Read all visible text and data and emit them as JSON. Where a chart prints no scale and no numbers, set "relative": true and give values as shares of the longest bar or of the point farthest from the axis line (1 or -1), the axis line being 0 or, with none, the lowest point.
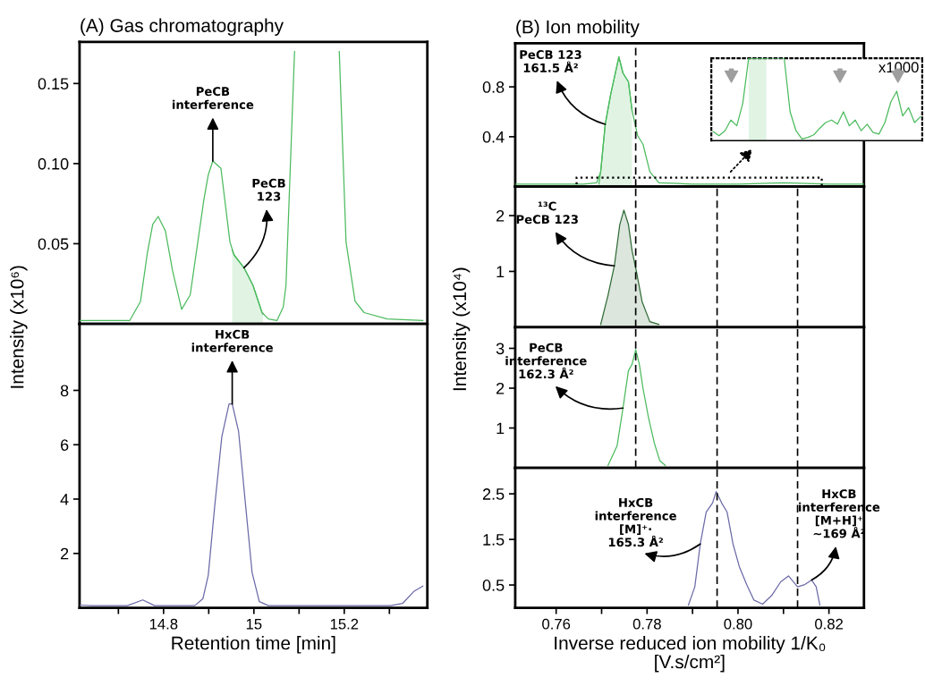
{
  "chart_data": [
    {
      "type": "line",
      "title": "(A) Gas chromatography",
      "ylabel": "Intensity (x10⁶)",
      "xlim": [
        14.614,
        15.384
      ],
      "ylim": [
        0,
        0.176
      ],
      "yticks": [
        0.15,
        {
          "value": 0.1,
          "label": "0.10"
        },
        0.05
      ],
      "tick_labels": "y",
      "grid": false,
      "series": [
        {
          "type": "area",
          "color": "#4cbb5e",
          "x": [
            14.952,
            14.956,
            14.978,
            14.998,
            15.018,
            15.02
          ],
          "values": [
            0.046,
            0.043,
            0.035,
            0.024,
            0.007,
            0.006
          ]
        },
        {
          "color": "#4cbb5e",
          "x": [
            14.614,
            14.725,
            14.749,
            14.764,
            14.776,
            14.788,
            14.804,
            14.82,
            14.84,
            14.859,
            14.889,
            14.899,
            14.909,
            14.927,
            14.947,
            14.956,
            14.978,
            14.998,
            15.018,
            15.032,
            15.051,
            15.065,
            15.071,
            15.09,
            15.14,
            15.189,
            15.204,
            15.224,
            15.244,
            15.295,
            15.374
          ],
          "values": [
            0.002,
            0.002,
            0.014,
            0.044,
            0.062,
            0.067,
            0.058,
            0.033,
            0.009,
            0.018,
            0.077,
            0.093,
            0.1016,
            0.097,
            0.051,
            0.043,
            0.035,
            0.024,
            0.007,
            0.003,
            0.002,
            0.0105,
            0.024,
            0.17,
            null,
            0.17,
            0.051,
            0.014,
            0.007,
            0.003,
            0.002
          ]
        }
      ],
      "annotations": [
        {
          "text": "PeCB\ninterference",
          "x": 14.909,
          "y": 0.1016
        },
        {
          "text": "PeCB\n123",
          "x": 14.978,
          "y": 0.035
        }
      ]
    },
    {
      "type": "line",
      "xlabel": "Retention time [min]",
      "xlim": [
        14.614,
        15.384
      ],
      "ylim": [
        0,
        10.45
      ],
      "xticks": [
        {
          "value": 14.7,
          "label": null
        },
        14.8,
        {
          "value": 14.9,
          "label": null
        },
        15,
        {
          "value": 15.1,
          "label": null
        },
        15.2,
        {
          "value": 15.3,
          "label": null
        }
      ],
      "yticks": [
        2,
        4,
        6,
        8
      ],
      "grid": false,
      "series": [
        {
          "color": "#6b6aa8",
          "x": [
            14.614,
            14.64,
            14.72,
            14.754,
            14.78,
            14.869,
            14.887,
            14.899,
            14.913,
            14.929,
            14.945,
            14.952,
            14.966,
            14.982,
            14.996,
            15.012,
            15.032,
            15.303,
            15.329,
            15.354,
            15.374
          ],
          "values": [
            0.1,
            0.08,
            0.08,
            0.29,
            0.08,
            0.08,
            0.33,
            1.2,
            3.7,
            6.3,
            7.5,
            7.5,
            6.5,
            3.7,
            1.3,
            0.23,
            0.08,
            0.08,
            0.16,
            0.6,
            0.8
          ]
        }
      ],
      "annotations": [
        {
          "text": "HxCB\ninterference",
          "x": 14.952,
          "y": 7.5
        }
      ]
    },
    {
      "type": "line",
      "title": "(B) Ion mobility",
      "ylabel": "Intensity (x10⁴)",
      "xlim": [
        0.751,
        0.8277
      ],
      "ylim": [
        0,
        1.15
      ],
      "yticks": [
        0.8,
        0.4
      ],
      "tick_labels": "y",
      "grid": false,
      "ref_lines": [
        {
          "axis": "x",
          "value": 0.7775,
          "line_style": "dashed",
          "color": "#000000"
        }
      ],
      "series": [
        {
          "type": "area",
          "color": "#4cbb5e",
          "x": [
            0.7694,
            0.7698,
            0.7708,
            0.772,
            0.7738,
            0.7747,
            0.7759,
            0.7767
          ],
          "values": [
            0.02,
            0.12,
            0.5,
            0.74,
            1.04,
            0.91,
            0.84,
            0.61
          ]
        },
        {
          "color": "#4cbb5e",
          "x": [
            0.751,
            0.766,
            0.7689,
            0.7698,
            0.7708,
            0.772,
            0.7738,
            0.7747,
            0.7759,
            0.7767,
            0.7779,
            0.7791,
            0.7806,
            0.7826,
            0.79,
            0.8,
            0.81,
            0.82,
            0.8277
          ],
          "values": [
            0.02,
            0.02,
            0.03,
            0.12,
            0.5,
            0.74,
            1.04,
            0.91,
            0.84,
            0.61,
            0.41,
            0.34,
            0.12,
            0.03,
            0.02,
            0.02,
            0.03,
            0.02,
            0.02
          ]
        }
      ],
      "annotations": [
        {
          "text": "PeCB 123\n161.5 Å²",
          "x": 0.7708,
          "y": 0.5
        }
      ]
    },
    {
      "type": "line",
      "xlim": [
        0.751,
        0.8277
      ],
      "ylim": [
        0,
        2.52
      ],
      "yticks": [
        1,
        2
      ],
      "tick_labels": "y",
      "grid": false,
      "ref_lines": [
        {
          "axis": "x",
          "value": 0.7775,
          "line_style": "dashed",
          "color": "#000000"
        },
        {
          "axis": "x",
          "value": 0.7954,
          "line_style": "dashed",
          "color": "#000000"
        },
        {
          "axis": "x",
          "value": 0.8131,
          "line_style": "dashed",
          "color": "#000000"
        }
      ],
      "series": [
        {
          "type": "area",
          "color": "#2f6b35",
          "x": [
            0.7698,
            0.7714,
            0.7728,
            0.774,
            0.7749,
            0.7759,
            0.7767,
            0.7777,
            0.7789,
            0.7806,
            0.7826
          ],
          "values": [
            0.05,
            0.57,
            1.1,
            1.84,
            2.1,
            1.84,
            1.37,
            0.98,
            0.46,
            0.1,
            0.05
          ]
        }
      ],
      "annotations": [
        {
          "text": "¹³C\nPeCB 123",
          "x": 0.7728,
          "y": 1.1
        }
      ]
    },
    {
      "type": "line",
      "xlim": [
        0.751,
        0.8277
      ],
      "ylim": [
        0,
        3.53
      ],
      "yticks": [
        1,
        2,
        3
      ],
      "tick_labels": "y",
      "grid": false,
      "ref_lines": [
        {
          "axis": "x",
          "value": 0.7775,
          "line_style": "dashed",
          "color": "#000000"
        },
        {
          "axis": "x",
          "value": 0.7954,
          "line_style": "dashed",
          "color": "#000000"
        },
        {
          "axis": "x",
          "value": 0.8131,
          "line_style": "dashed",
          "color": "#000000"
        }
      ],
      "series": [
        {
          "color": "#4cbb5e",
          "x": [
            0.7714,
            0.7734,
            0.7747,
            0.7759,
            0.7767,
            0.7775,
            0.7783,
            0.7791,
            0.7803,
            0.7816,
            0.7828,
            0.784
          ],
          "values": [
            0.06,
            0.55,
            1.5,
            2.44,
            2.6,
            2.97,
            2.6,
            2.0,
            1.27,
            0.62,
            0.18,
            0.06
          ]
        }
      ],
      "annotations": [
        {
          "text": "PeCB\ninterference\n162.3 Å²",
          "x": 0.7747,
          "y": 1.5
        }
      ]
    },
    {
      "type": "line",
      "xlabel": "Inverse reduced ion mobility 1/K₀\n[V.s/cm²]",
      "xlim": [
        0.751,
        0.8277
      ],
      "ylim": [
        0,
        3.07
      ],
      "xticks": [
        0.76,
        {
          "value": 0.77,
          "label": null
        },
        0.78,
        {
          "value": 0.79,
          "label": null
        },
        {
          "value": 0.8,
          "label": "0.80"
        },
        {
          "value": 0.81,
          "label": null
        },
        0.82
      ],
      "yticks": [
        0.5,
        1.5,
        2.5
      ],
      "grid": false,
      "ref_lines": [
        {
          "axis": "x",
          "value": 0.7954,
          "line_style": "dashed",
          "color": "#000000"
        },
        {
          "axis": "x",
          "value": 0.8131,
          "line_style": "dashed",
          "color": "#000000"
        }
      ],
      "series": [
        {
          "color": "#6b6aa8",
          "x": [
            0.7891,
            0.7905,
            0.7917,
            0.793,
            0.7944,
            0.7952,
            0.7964,
            0.7976,
            0.7989,
            0.8003,
            0.8019,
            0.8035,
            0.8054,
            0.8074,
            0.8094,
            0.8111,
            0.8131,
            0.8147,
            0.8162,
            0.8172,
            0.818
          ],
          "values": [
            0.06,
            0.46,
            1.4,
            2.1,
            2.3,
            2.55,
            2.3,
            2.1,
            1.4,
            0.9,
            0.51,
            0.17,
            0.08,
            0.27,
            0.57,
            0.7,
            0.46,
            0.51,
            0.61,
            0.46,
            0.06
          ]
        }
      ],
      "annotations": [
        {
          "text": "HxCB\ninterference\n[M]⁺·\n165.3 Å²",
          "x": 0.7917,
          "y": 1.4
        },
        {
          "text": "HxCB\ninterference\n[M+H]⁺\n~169 Å²",
          "x": 0.8162,
          "y": 0.61
        }
      ]
    },
    {
      "type": "line",
      "relative": true,
      "tick_labels": false,
      "grid": false,
      "categories": [
        null,
        null,
        null,
        null,
        null,
        null,
        null,
        null,
        null,
        null,
        null,
        null,
        null,
        null,
        null,
        null,
        null,
        null,
        null,
        null,
        null,
        null,
        null,
        null,
        null,
        null,
        null,
        null,
        null,
        null,
        null,
        null,
        null,
        null,
        null,
        null
      ],
      "series": [
        {
          "type": "area",
          "color": "#4cbb5e",
          "values": [
            null,
            null,
            null,
            null,
            null,
            null,
            1,
            1,
            1,
            1,
            null,
            null,
            null,
            null,
            null,
            null,
            null,
            null,
            null,
            null,
            null,
            null,
            null,
            null,
            null,
            null,
            null,
            null,
            null,
            null,
            null,
            null,
            null,
            null,
            null,
            null
          ]
        },
        {
          "color": "#4cbb5e",
          "values": [
            0.11,
            0.06,
            0.12,
            0.25,
            0.18,
            0.45,
            1,
            1,
            1,
            1,
            1,
            1,
            1,
            0.35,
            0.12,
            0.02,
            0.04,
            0.07,
            0.15,
            0.22,
            0.25,
            0.2,
            0.35,
            0.18,
            0.25,
            0.12,
            0.2,
            0.1,
            0.08,
            0.22,
            0.47,
            0.6,
            0.3,
            0.4,
            0.22,
            0.29
          ]
        }
      ],
      "annotations": [
        "x1000"
      ]
    }
  ]
}
